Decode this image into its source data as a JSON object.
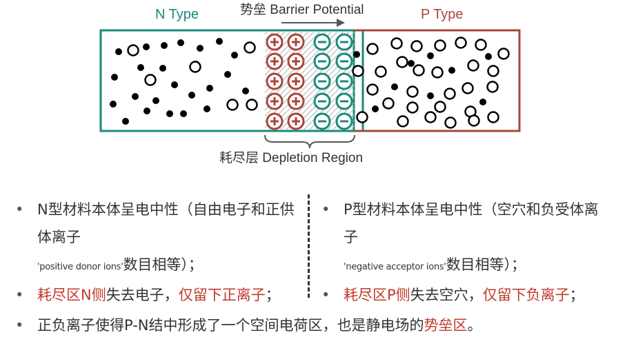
{
  "diagram": {
    "n_label": "N Type",
    "p_label": "P Type",
    "barrier_label": "势垒 Barrier Potential",
    "depletion_label": "耗尽层 Depletion Region",
    "colors": {
      "n": "#1a8a78",
      "p": "#a8463a",
      "ion_pos": "#a8463a",
      "ion_neg": "#1a8a78"
    }
  },
  "left_col": {
    "b1_main": "N型材料本体呈电中性（自由电子和正供体离子",
    "b1_small": "'positive donor ions'",
    "b1_end": "数目相等）；",
    "b2_red1": "耗尽区N侧",
    "b2_mid": "失去电子，",
    "b2_red2": "仅留下正离子",
    "b2_end": "；"
  },
  "right_col": {
    "b1_main": "P型材料本体呈电中性（空穴和负受体离子",
    "b1_small": "'negative acceptor ions'",
    "b1_end": "数目相等）；",
    "b2_red1": "耗尽区P侧",
    "b2_mid": "失去空穴，",
    "b2_red2": "仅留下负离子",
    "b2_end": "；"
  },
  "bottom": {
    "text": "正负离子使得P-N结中形成了一个空间电荷区，也是静电场的",
    "red": "势垒区",
    "end": "。"
  },
  "bullet_char": "•"
}
